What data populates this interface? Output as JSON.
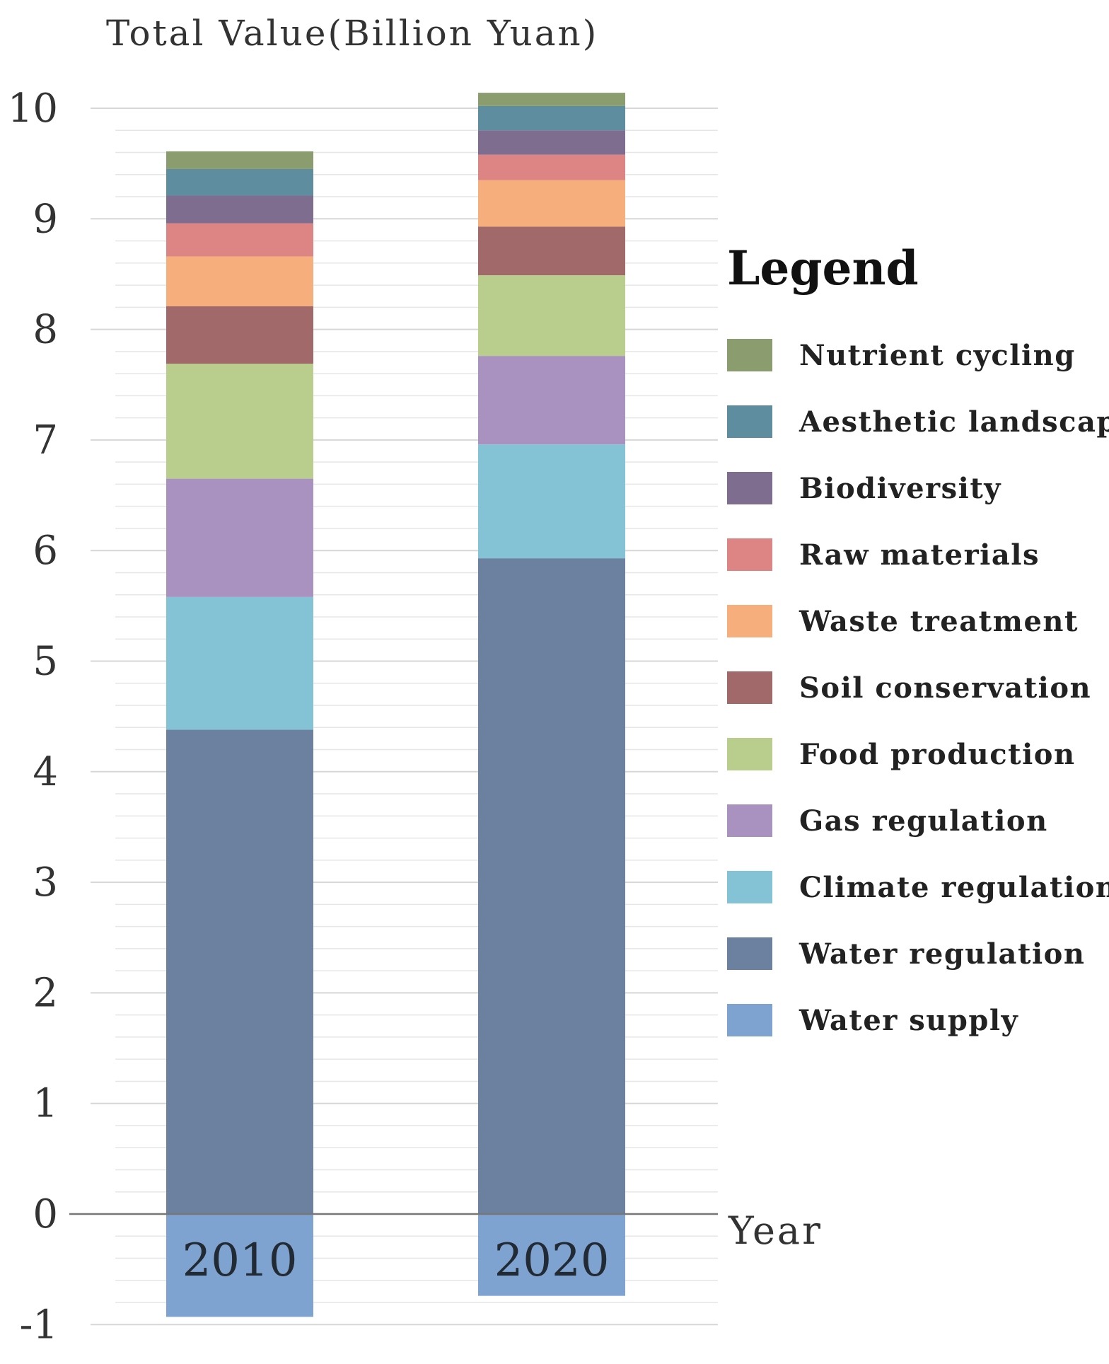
{
  "chart_data": {
    "type": "bar",
    "stacked": true,
    "categories": [
      "2010",
      "2020"
    ],
    "ylabel": "Total Value(Billion Yuan)",
    "xlabel": "Year",
    "ylim": [
      -1,
      10
    ],
    "yticks": [
      "-1",
      "0",
      "1",
      "2",
      "3",
      "4",
      "5",
      "6",
      "7",
      "8",
      "9",
      "10"
    ],
    "legend_title": "Legend",
    "legend_position": "right",
    "series": [
      {
        "name": "Water supply",
        "color": "#7fa3d0",
        "values": [
          -0.93,
          -0.74
        ]
      },
      {
        "name": "Water regulation",
        "color": "#6b819f",
        "values": [
          4.38,
          5.93
        ]
      },
      {
        "name": "Climate regulation",
        "color": "#83c3d5",
        "values": [
          1.2,
          1.03
        ]
      },
      {
        "name": "Gas regulation",
        "color": "#a991c0",
        "values": [
          1.07,
          0.8
        ]
      },
      {
        "name": "Food production",
        "color": "#b9cd8c",
        "values": [
          1.04,
          0.73
        ]
      },
      {
        "name": "Soil conservation",
        "color": "#a1696a",
        "values": [
          0.52,
          0.44
        ]
      },
      {
        "name": "Waste treatment",
        "color": "#f5ae7c",
        "values": [
          0.45,
          0.42
        ]
      },
      {
        "name": "Raw materials",
        "color": "#dc8584",
        "values": [
          0.3,
          0.23
        ]
      },
      {
        "name": "Biodiversity",
        "color": "#7e6d8f",
        "values": [
          0.25,
          0.22
        ]
      },
      {
        "name": "Aesthetic landscape",
        "color": "#5f8da0",
        "values": [
          0.24,
          0.22
        ]
      },
      {
        "name": "Nutrient cycling",
        "color": "#8b9d6f",
        "values": [
          0.16,
          0.12
        ]
      }
    ]
  }
}
